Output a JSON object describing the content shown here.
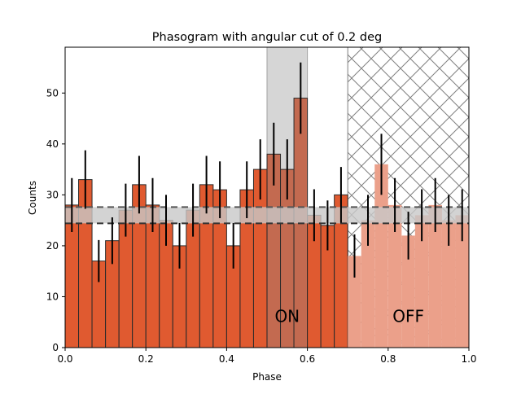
{
  "chart_data": {
    "type": "bar",
    "title": "Phasogram with angular cut of 0.2 deg",
    "xlabel": "Phase",
    "ylabel": "Counts",
    "xlim": [
      0.0,
      1.0
    ],
    "ylim": [
      0,
      59
    ],
    "bin_width": 0.0333,
    "x": [
      0.0167,
      0.05,
      0.0833,
      0.1167,
      0.15,
      0.1833,
      0.2167,
      0.25,
      0.2833,
      0.3167,
      0.35,
      0.3833,
      0.4167,
      0.45,
      0.4833,
      0.5167,
      0.55,
      0.5833,
      0.6167,
      0.65,
      0.6833,
      0.7167,
      0.75,
      0.7833,
      0.8167,
      0.85,
      0.8833,
      0.9167,
      0.95,
      0.9833
    ],
    "values": [
      28,
      33,
      17,
      21,
      27,
      32,
      28,
      25,
      20,
      27,
      32,
      31,
      20,
      31,
      35,
      38,
      35,
      49,
      26,
      24,
      30,
      18,
      25,
      36,
      28,
      22,
      26,
      28,
      25,
      26
    ],
    "xticks": [
      "0.0",
      "0.2",
      "0.4",
      "0.6",
      "0.8",
      "1.0"
    ],
    "yticks": [
      "0",
      "10",
      "20",
      "30",
      "40",
      "50"
    ],
    "background_level": 26.0,
    "background_band": [
      24.4,
      27.6
    ],
    "on_region": {
      "label": "ON",
      "range": [
        0.5,
        0.6
      ]
    },
    "off_region": {
      "label": "OFF",
      "range": [
        0.7,
        1.0
      ]
    },
    "colors": {
      "bar": "#e05a30",
      "bar_on": "#c36a50",
      "bar_off": "#eba08a",
      "on_band": "#d6d6d6",
      "bg_band": "#c8c8c8",
      "hatch": "#808080",
      "error": "#000000"
    },
    "grid": false
  }
}
